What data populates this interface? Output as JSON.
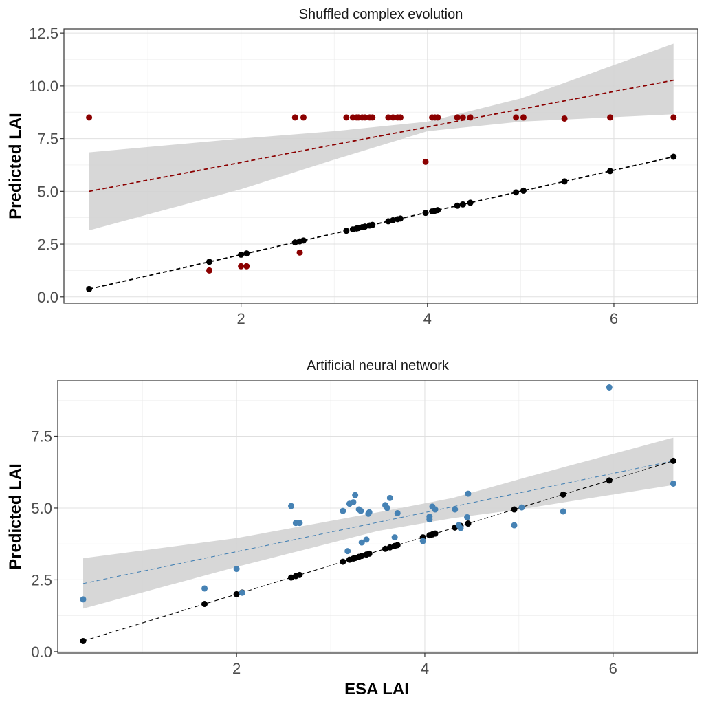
{
  "chart_data": [
    {
      "type": "scatter",
      "title": "Shuffled complex evolution",
      "xlabel": "",
      "ylabel": "Predicted LAI",
      "xlim": [
        0.1,
        6.9
      ],
      "ylim": [
        -0.3,
        12.7
      ],
      "xticks": [
        2,
        4,
        6
      ],
      "yticks": [
        0.0,
        2.5,
        5.0,
        7.5,
        10.0,
        12.5
      ],
      "ytick_labels": [
        "0.0",
        "2.5",
        "5.0",
        "7.5",
        "10.0",
        "12.5"
      ],
      "xtick_labels": [
        "2",
        "4",
        "6"
      ],
      "grid": true,
      "colors": {
        "model": "#8b0000",
        "reference": "#000000",
        "ribbon": "#d3d3d3"
      },
      "reference": {
        "x": [
          0.37,
          1.66,
          2.0,
          2.06,
          2.58,
          2.63,
          2.67,
          3.13,
          3.2,
          3.24,
          3.26,
          3.3,
          3.33,
          3.38,
          3.41,
          3.58,
          3.63,
          3.68,
          3.71,
          3.98,
          4.05,
          4.08,
          4.11,
          4.32,
          4.38,
          4.46,
          4.95,
          5.03,
          5.47,
          5.96,
          6.64
        ],
        "y": [
          0.37,
          1.66,
          2.0,
          2.06,
          2.58,
          2.63,
          2.67,
          3.13,
          3.2,
          3.24,
          3.26,
          3.3,
          3.33,
          3.38,
          3.41,
          3.58,
          3.63,
          3.68,
          3.71,
          3.98,
          4.05,
          4.08,
          4.11,
          4.32,
          4.38,
          4.46,
          4.95,
          5.03,
          5.47,
          5.96,
          6.64
        ]
      },
      "model": {
        "x": [
          0.37,
          1.66,
          2.0,
          2.06,
          2.58,
          2.63,
          2.67,
          3.13,
          3.2,
          3.24,
          3.26,
          3.3,
          3.33,
          3.38,
          3.41,
          3.58,
          3.63,
          3.68,
          3.71,
          3.98,
          4.05,
          4.08,
          4.11,
          4.32,
          4.38,
          4.46,
          4.95,
          5.03,
          5.47,
          5.96,
          6.64
        ],
        "y": [
          8.5,
          1.25,
          1.45,
          1.45,
          8.5,
          2.1,
          8.5,
          8.5,
          8.5,
          8.5,
          8.5,
          8.5,
          8.5,
          8.5,
          8.5,
          8.5,
          8.5,
          8.5,
          8.5,
          6.4,
          8.5,
          8.5,
          8.5,
          8.5,
          8.5,
          8.5,
          8.5,
          8.5,
          8.45,
          8.5,
          8.5
        ]
      },
      "fit": {
        "x": [
          0.37,
          6.64
        ],
        "y": [
          5.0,
          10.27
        ]
      },
      "band": {
        "x": [
          0.37,
          2.0,
          3.0,
          4.0,
          5.0,
          6.64
        ],
        "lower": [
          3.15,
          5.1,
          6.5,
          7.85,
          8.3,
          8.65
        ],
        "upper": [
          6.85,
          7.5,
          7.85,
          8.3,
          9.4,
          12.0
        ]
      }
    },
    {
      "type": "scatter",
      "title": "Artificial neural network",
      "xlabel": "ESA LAI",
      "ylabel": "Predicted LAI",
      "xlim": [
        0.1,
        6.9
      ],
      "ylim": [
        -0.05,
        9.45
      ],
      "xticks": [
        2,
        4,
        6
      ],
      "yticks": [
        0.0,
        2.5,
        5.0,
        7.5
      ],
      "ytick_labels": [
        "0.0",
        "2.5",
        "5.0",
        "7.5"
      ],
      "xtick_labels": [
        "2",
        "4",
        "6"
      ],
      "grid": true,
      "colors": {
        "model": "#4682b4",
        "reference": "#000000",
        "ribbon": "#d3d3d3"
      },
      "reference": {
        "x": [
          0.37,
          1.66,
          2.0,
          2.06,
          2.58,
          2.63,
          2.67,
          3.13,
          3.2,
          3.24,
          3.26,
          3.3,
          3.33,
          3.38,
          3.41,
          3.58,
          3.63,
          3.68,
          3.71,
          3.98,
          4.05,
          4.08,
          4.11,
          4.32,
          4.38,
          4.46,
          4.95,
          5.47,
          5.96,
          6.64
        ],
        "y": [
          0.37,
          1.66,
          2.0,
          2.06,
          2.58,
          2.63,
          2.67,
          3.13,
          3.2,
          3.24,
          3.26,
          3.3,
          3.33,
          3.38,
          3.41,
          3.58,
          3.63,
          3.68,
          3.71,
          3.98,
          4.05,
          4.08,
          4.11,
          4.32,
          4.38,
          4.46,
          4.95,
          5.47,
          5.96,
          6.64
        ]
      },
      "model": {
        "x": [
          0.37,
          1.66,
          2.0,
          2.06,
          2.58,
          2.63,
          2.67,
          3.13,
          3.18,
          3.2,
          3.24,
          3.26,
          3.3,
          3.33,
          3.38,
          3.41,
          3.58,
          3.63,
          3.68,
          3.71,
          3.98,
          4.05,
          4.08,
          4.11,
          4.32,
          4.38,
          4.46,
          4.95,
          5.03,
          5.47,
          5.96,
          6.64,
          3.32,
          3.4,
          3.6,
          4.05,
          4.36,
          4.45
        ],
        "y": [
          1.82,
          2.2,
          2.88,
          2.05,
          5.07,
          4.48,
          4.48,
          4.9,
          3.5,
          5.15,
          5.2,
          5.45,
          4.95,
          3.8,
          3.9,
          4.85,
          5.1,
          5.35,
          3.98,
          4.82,
          3.85,
          4.6,
          5.05,
          4.95,
          4.95,
          4.3,
          5.5,
          4.4,
          5.02,
          4.88,
          9.2,
          5.85,
          4.9,
          4.8,
          5.0,
          4.7,
          4.4,
          4.68
        ]
      },
      "fit": {
        "x": [
          0.37,
          6.64
        ],
        "y": [
          2.37,
          6.64
        ]
      },
      "band": {
        "x": [
          0.37,
          2.0,
          3.5,
          4.3,
          5.0,
          6.64
        ],
        "lower": [
          1.5,
          2.95,
          4.2,
          4.65,
          4.95,
          5.8
        ],
        "upper": [
          3.25,
          3.95,
          4.85,
          5.35,
          6.0,
          7.45
        ]
      }
    }
  ]
}
